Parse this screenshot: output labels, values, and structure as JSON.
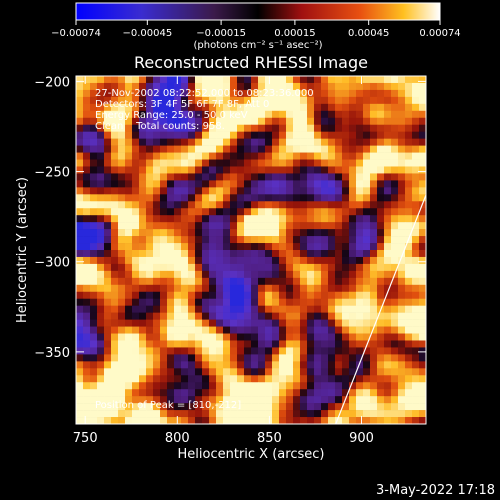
{
  "chart_data": {
    "type": "heatmap",
    "title": "Reconstructed RHESSI Image",
    "xlabel": "Heliocentric X (arcsec)",
    "ylabel": "Heliocentric Y (arcsec)",
    "xlim": [
      745,
      935
    ],
    "ylim": [
      -390,
      -197
    ],
    "x_ticks": [
      750,
      800,
      850,
      900
    ],
    "x_tick_labels": [
      "750",
      "800",
      "850",
      "900"
    ],
    "y_ticks": [
      -200,
      -250,
      -300,
      -350
    ],
    "y_tick_labels": [
      "−200",
      "−250",
      "−300",
      "−350"
    ],
    "colorbar": {
      "min": -0.00074,
      "max": 0.00074,
      "tick_values": [
        -0.00074,
        -0.00045,
        -0.00015,
        0.00015,
        0.00045,
        0.00074
      ],
      "tick_labels": [
        "−0.00074",
        "−0.00045",
        "−0.00015",
        "0.00015",
        "0.00045",
        "0.00074"
      ],
      "unit_label": "(photons cm⁻² s⁻¹ asec⁻²)"
    },
    "annotations": [
      "27-Nov-2002 08:22:52.000 to 08:23:36.000",
      "Detectors: 3F 4F 5F 6F 7F 8F, Att 0",
      "Energy Range: 25.0 - 50.0 keV",
      "Clean    Total counts: 958."
    ],
    "peak_label": "Position of Peak = [810,-212]",
    "limb_line": [
      [
        886,
        -390
      ],
      [
        935,
        -263
      ]
    ],
    "grid": false
  },
  "footer": {
    "date_stamp": "3-May-2022 17:18"
  },
  "colors": {
    "background": "#000000",
    "text": "#ffffff",
    "colormap": [
      "#0000ff",
      "#6a2fd0",
      "#5a2a8a",
      "#a01a1a",
      "#e06010",
      "#ffd040",
      "#ffffff"
    ]
  }
}
